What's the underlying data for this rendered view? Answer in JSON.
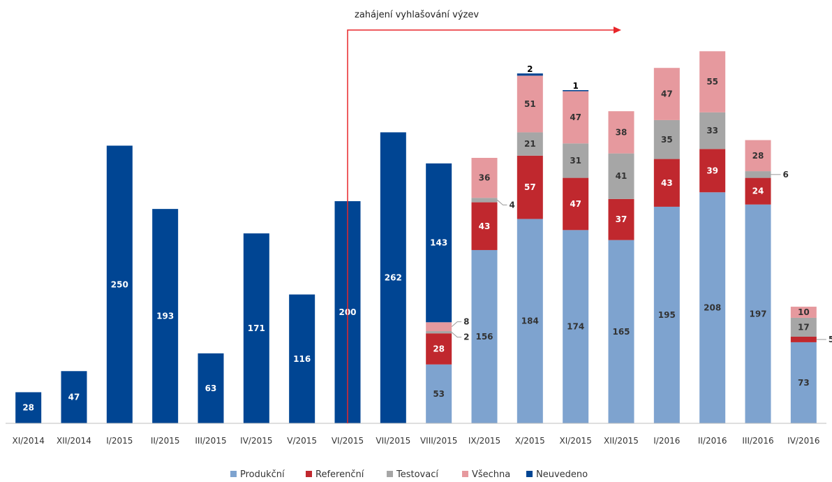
{
  "chart_data": {
    "type": "bar",
    "stacked": true,
    "categories": [
      "XI/2014",
      "XII/2014",
      "I/2015",
      "II/2015",
      "III/2015",
      "IV/2015",
      "V/2015",
      "VI/2015",
      "VII/2015",
      "VIII/2015",
      "IX/2015",
      "X/2015",
      "XI/2015",
      "XII/2015",
      "I/2016",
      "II/2016",
      "III/2016",
      "IV/2016"
    ],
    "series": [
      {
        "name": "Produkční",
        "color": "#7ea3cf",
        "label_color": "#333333",
        "values": [
          0,
          0,
          0,
          0,
          0,
          0,
          0,
          0,
          0,
          53,
          156,
          184,
          174,
          165,
          195,
          208,
          197,
          73
        ]
      },
      {
        "name": "Referenční",
        "color": "#c0282e",
        "label_color": "#ffffff",
        "values": [
          0,
          0,
          0,
          0,
          0,
          0,
          0,
          0,
          0,
          28,
          43,
          57,
          47,
          37,
          43,
          39,
          24,
          5
        ]
      },
      {
        "name": "Testovací",
        "color": "#a6a6a6",
        "label_color": "#333333",
        "values": [
          0,
          0,
          0,
          0,
          0,
          0,
          0,
          0,
          0,
          2,
          4,
          21,
          31,
          41,
          35,
          33,
          6,
          17
        ]
      },
      {
        "name": "Všechna",
        "color": "#e6999e",
        "label_color": "#333333",
        "values": [
          0,
          0,
          0,
          0,
          0,
          0,
          0,
          0,
          0,
          8,
          36,
          51,
          47,
          38,
          47,
          55,
          28,
          10
        ]
      },
      {
        "name": "Neuvedeno",
        "color": "#004593",
        "label_color": "#ffffff",
        "values": [
          28,
          47,
          250,
          193,
          63,
          171,
          116,
          200,
          262,
          143,
          0,
          2,
          1,
          0,
          0,
          0,
          0,
          0
        ]
      }
    ],
    "ylim": [
      0,
      340
    ],
    "annotation": {
      "text": "zahájení vyhlašování výzev",
      "at_category": "VI/2015",
      "color": "#e8262a"
    },
    "legend_position": "bottom"
  }
}
